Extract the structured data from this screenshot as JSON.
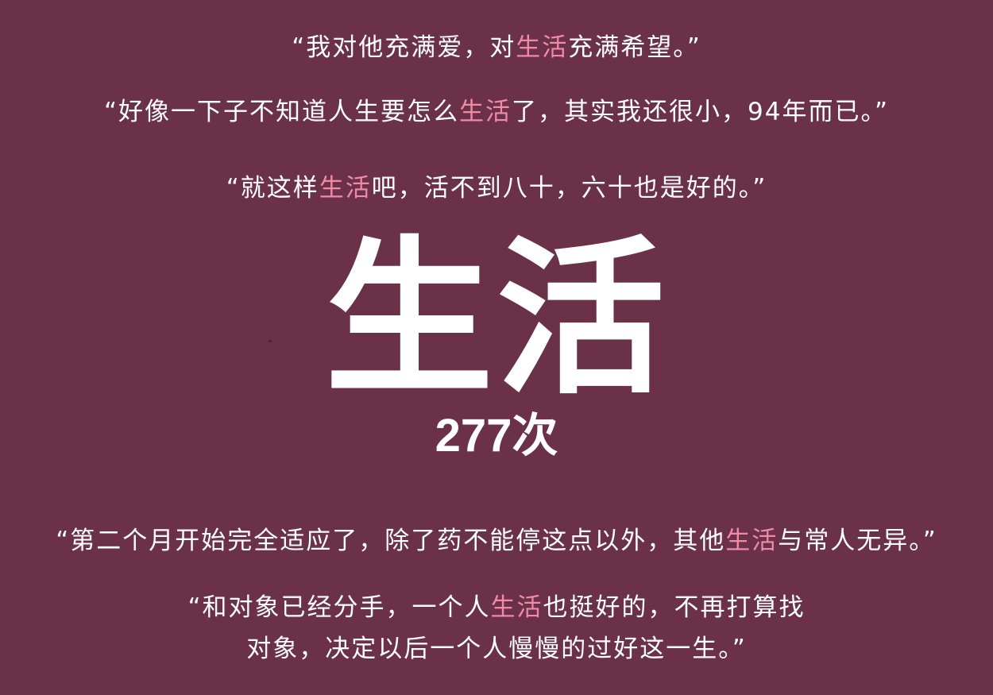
{
  "title": {
    "word": "生活",
    "count": "277次"
  },
  "stray_mark": "“",
  "quotes": {
    "q1": {
      "before": "“我对他充满爱，对",
      "highlight": "生活",
      "after": "充满希望。”"
    },
    "q2": {
      "before": "“好像一下子不知道人生要怎么",
      "highlight": "生活",
      "after": "了，其实我还很小，94年而已。”"
    },
    "q3": {
      "before": "“就这样",
      "highlight": "生活",
      "after": "吧，活不到八十，六十也是好的。”"
    },
    "q4": {
      "before": "“第二个月开始完全适应了，除了药不能停这点以外，其他",
      "highlight": "生活",
      "after": "与常人无异。”"
    },
    "q5": {
      "line1_before": "“和对象已经分手，一个人",
      "line1_highlight": "生活",
      "line1_after": "也挺好的，不再打算找",
      "line2": "对象，决定以后一个人慢慢的过好这一生。”"
    }
  },
  "colors": {
    "background": "#6a3149",
    "text": "#ffffff",
    "highlight": "#f08aa6"
  }
}
